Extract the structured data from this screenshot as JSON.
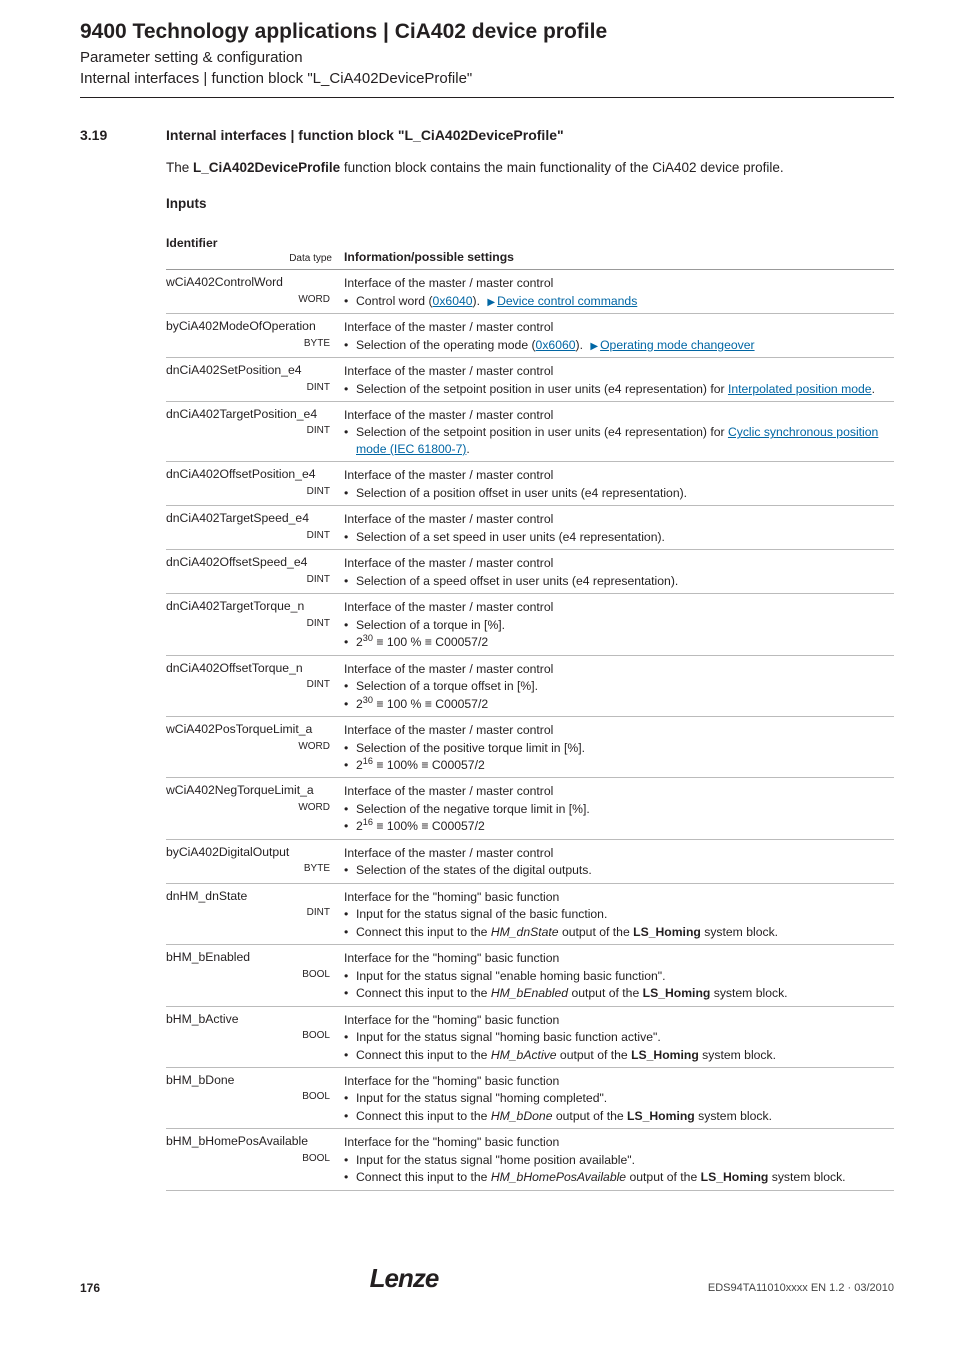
{
  "header": {
    "title": "9400 Technology applications | CiA402 device profile",
    "sub1": "Parameter setting & configuration",
    "sub2": "Internal interfaces | function block \"L_CiA402DeviceProfile\""
  },
  "section": {
    "num": "3.19",
    "title": "Internal interfaces | function block \"L_CiA402DeviceProfile\""
  },
  "intro": {
    "pre": "The ",
    "fb": "L_CiA402DeviceProfile",
    "post": " function block contains the main functionality of the CiA402 device profile."
  },
  "inputsHeading": "Inputs",
  "tableHead": {
    "col1": "Identifier",
    "col1sub": "Data type",
    "col2": "Information/possible settings"
  },
  "rows": [
    {
      "id": "wCiA402ControlWord",
      "dt": "WORD",
      "lead": "Interface of the master / master control",
      "itemsHtml": "Control word (<a class='link' href='#'>0x6040</a>). <span class='tri'>▶</span><a class='link' href='#'>Device control commands</a>"
    },
    {
      "id": "byCiA402ModeOfOperation",
      "dt": "BYTE",
      "lead": "Interface of the master / master control",
      "itemsHtml": "Selection of the operating mode (<a class='link' href='#'>0x6060</a>). <span class='tri'>▶</span><a class='link' href='#'>Operating mode changeover</a>"
    },
    {
      "id": "dnCiA402SetPosition_e4",
      "dt": "DINT",
      "lead": "Interface of the master / master control",
      "itemsHtml": "Selection of the setpoint position in user units (e4 representation) for <a class='link' href='#'>Interpolated position mode</a>."
    },
    {
      "id": "dnCiA402TargetPosition_e4",
      "dt": "DINT",
      "lead": "Interface of the master / master control",
      "itemsHtml": "Selection of the setpoint position in user units (e4 representation) for <a class='link' href='#'>Cyclic synchronous position mode (IEC 61800-7)</a>."
    },
    {
      "id": "dnCiA402OffsetPosition_e4",
      "dt": "DINT",
      "lead": "Interface of the master / master control",
      "itemsHtml": "Selection of a position offset in user units (e4 representation)."
    },
    {
      "id": "dnCiA402TargetSpeed_e4",
      "dt": "DINT",
      "lead": "Interface of the master / master control",
      "itemsHtml": "Selection of a set speed in user units (e4 representation)."
    },
    {
      "id": "dnCiA402OffsetSpeed_e4",
      "dt": "DINT",
      "lead": "Interface of the master / master control",
      "itemsHtml": "Selection of a speed offset in user units (e4 representation)."
    },
    {
      "id": "dnCiA402TargetTorque_n",
      "dt": "DINT",
      "lead": "Interface of the master / master control",
      "itemsHtml": "Selection of a torque in [%].</li><li>2<sup>30</sup> ≡ 100 % ≡ C00057/2"
    },
    {
      "id": "dnCiA402OffsetTorque_n",
      "dt": "DINT",
      "lead": "Interface of the master / master control",
      "itemsHtml": "Selection of a torque offset in [%].</li><li>2<sup>30</sup> ≡ 100 % ≡ C00057/2"
    },
    {
      "id": "wCiA402PosTorqueLimit_a",
      "dt": "WORD",
      "lead": "Interface of the master / master control",
      "itemsHtml": "Selection of the positive torque limit in [%].</li><li>2<sup>16</sup> ≡ 100% ≡ C00057/2"
    },
    {
      "id": "wCiA402NegTorqueLimit_a",
      "dt": "WORD",
      "lead": "Interface of the master / master control",
      "itemsHtml": "Selection of the negative torque limit in [%].</li><li>2<sup>16</sup> ≡ 100% ≡ C00057/2"
    },
    {
      "id": "byCiA402DigitalOutput",
      "dt": "BYTE",
      "lead": "Interface of the master / master control",
      "itemsHtml": "Selection of the states of the digital outputs."
    },
    {
      "id": "dnHM_dnState",
      "dt": "DINT",
      "lead": "Interface for the \"homing\" basic function",
      "itemsHtml": "Input for the status signal of the basic function.</li><li>Connect this input to the <span class='ital'>HM_dnState</span> output of the <span class='bold'>LS_Homing</span> system block."
    },
    {
      "id": "bHM_bEnabled",
      "dt": "BOOL",
      "lead": "Interface for the \"homing\" basic function",
      "itemsHtml": "Input for the status signal \"enable homing basic function\".</li><li>Connect this input to the <span class='ital'>HM_bEnabled</span> output of the <span class='bold'>LS_Homing</span> system block."
    },
    {
      "id": "bHM_bActive",
      "dt": "BOOL",
      "lead": "Interface for the \"homing\" basic function",
      "itemsHtml": "Input for the status signal \"homing basic function active\".</li><li>Connect this input to the <span class='ital'>HM_bActive</span> output of the <span class='bold'>LS_Homing</span> system block."
    },
    {
      "id": "bHM_bDone",
      "dt": "BOOL",
      "lead": "Interface for the \"homing\" basic function",
      "itemsHtml": "Input for the status signal \"homing completed\".</li><li>Connect this input to the <span class='ital'>HM_bDone</span> output of the <span class='bold'>LS_Homing</span> system block."
    },
    {
      "id": "bHM_bHomePosAvailable",
      "dt": "BOOL",
      "lead": "Interface for the \"homing\" basic function",
      "itemsHtml": "Input for the status signal \"home position available\".</li><li>Connect this input to the <span class='ital'>HM_bHomePosAvailable</span> output of the <span class='bold'>LS_Homing</span> system block."
    }
  ],
  "footer": {
    "page": "176",
    "logo": "Lenze",
    "doc": "EDS94TA11010xxxx EN 1.2 · 03/2010"
  }
}
